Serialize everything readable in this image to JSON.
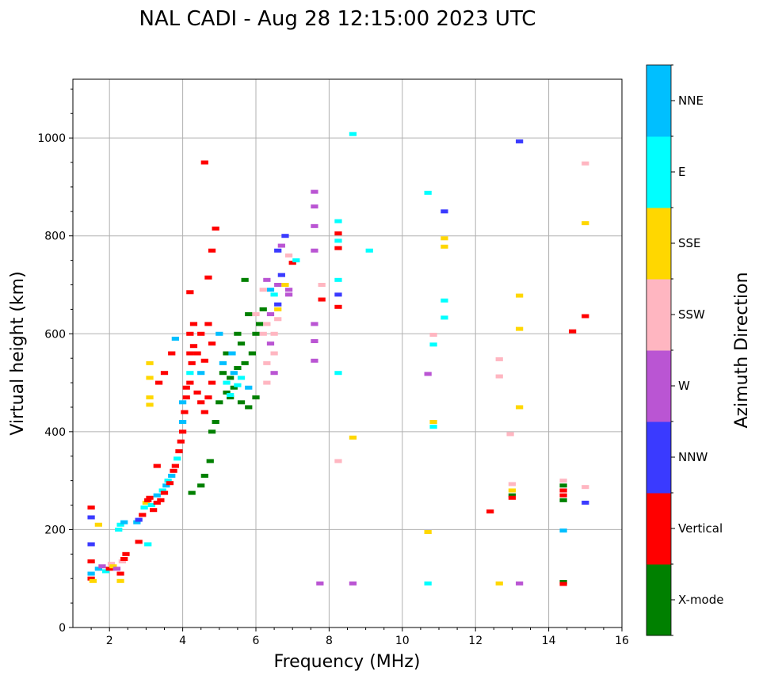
{
  "chart_data": {
    "type": "scatter",
    "title": "NAL CADI - Aug 28 12:15:00 2023 UTC",
    "xlabel": "Frequency (MHz)",
    "ylabel": "Virtual height (km)",
    "xlim": [
      1,
      16
    ],
    "ylim": [
      0,
      1120
    ],
    "xticks": [
      2,
      4,
      6,
      8,
      10,
      12,
      14,
      16
    ],
    "yticks": [
      0,
      200,
      400,
      600,
      800,
      1000
    ],
    "grid": true,
    "colorbar": {
      "label": "Azimuth Direction",
      "categories": [
        "X-mode",
        "Vertical",
        "NNW",
        "W",
        "SSW",
        "SSE",
        "E",
        "NNE"
      ],
      "colors": [
        "#008000",
        "#ff0000",
        "#3a3aff",
        "#ba55d3",
        "#ffb6c1",
        "#ffd700",
        "#00ffff",
        "#00bfff"
      ]
    },
    "points_format": "[frequency_MHz, virtual_height_km, category_index]",
    "points": [
      [
        1.5,
        100,
        1
      ],
      [
        1.5,
        110,
        7
      ],
      [
        1.55,
        95,
        5
      ],
      [
        1.7,
        120,
        7
      ],
      [
        1.8,
        125,
        3
      ],
      [
        1.9,
        115,
        6
      ],
      [
        2.0,
        120,
        1
      ],
      [
        2.05,
        130,
        4
      ],
      [
        2.1,
        125,
        5
      ],
      [
        2.2,
        120,
        3
      ],
      [
        2.3,
        110,
        1
      ],
      [
        2.3,
        95,
        5
      ],
      [
        2.35,
        135,
        4
      ],
      [
        2.4,
        140,
        1
      ],
      [
        2.45,
        150,
        1
      ],
      [
        1.5,
        135,
        1
      ],
      [
        1.5,
        170,
        2
      ],
      [
        1.5,
        245,
        1
      ],
      [
        1.5,
        225,
        2
      ],
      [
        1.7,
        210,
        5
      ],
      [
        2.3,
        210,
        6
      ],
      [
        2.25,
        200,
        6
      ],
      [
        2.4,
        215,
        7
      ],
      [
        2.8,
        175,
        1
      ],
      [
        3.05,
        170,
        6
      ],
      [
        2.75,
        215,
        7
      ],
      [
        2.8,
        220,
        2
      ],
      [
        2.9,
        230,
        1
      ],
      [
        2.95,
        245,
        6
      ],
      [
        3.0,
        255,
        5
      ],
      [
        3.05,
        260,
        1
      ],
      [
        3.1,
        265,
        1
      ],
      [
        3.15,
        250,
        6
      ],
      [
        3.2,
        240,
        1
      ],
      [
        3.3,
        255,
        1
      ],
      [
        3.3,
        270,
        7
      ],
      [
        3.4,
        260,
        1
      ],
      [
        3.45,
        280,
        6
      ],
      [
        3.5,
        275,
        1
      ],
      [
        3.55,
        290,
        7
      ],
      [
        3.6,
        300,
        6
      ],
      [
        3.65,
        295,
        1
      ],
      [
        3.7,
        310,
        7
      ],
      [
        3.75,
        320,
        1
      ],
      [
        3.8,
        330,
        1
      ],
      [
        3.85,
        345,
        6
      ],
      [
        3.9,
        360,
        1
      ],
      [
        3.95,
        380,
        1
      ],
      [
        4.0,
        400,
        1
      ],
      [
        4.0,
        420,
        7
      ],
      [
        4.05,
        440,
        1
      ],
      [
        4.0,
        460,
        7
      ],
      [
        4.1,
        470,
        1
      ],
      [
        4.1,
        490,
        1
      ],
      [
        4.2,
        500,
        1
      ],
      [
        4.2,
        520,
        6
      ],
      [
        4.25,
        540,
        1
      ],
      [
        4.2,
        560,
        1
      ],
      [
        4.3,
        575,
        1
      ],
      [
        4.2,
        600,
        1
      ],
      [
        4.3,
        620,
        1
      ],
      [
        4.2,
        685,
        1
      ],
      [
        4.6,
        950,
        1
      ],
      [
        4.9,
        815,
        1
      ],
      [
        4.8,
        770,
        1
      ],
      [
        4.7,
        715,
        1
      ],
      [
        4.4,
        480,
        1
      ],
      [
        4.5,
        460,
        1
      ],
      [
        4.6,
        440,
        1
      ],
      [
        4.7,
        470,
        1
      ],
      [
        4.8,
        500,
        1
      ],
      [
        4.5,
        520,
        7
      ],
      [
        4.6,
        545,
        1
      ],
      [
        4.4,
        560,
        1
      ],
      [
        4.8,
        580,
        1
      ],
      [
        4.5,
        600,
        1
      ],
      [
        4.7,
        620,
        1
      ],
      [
        3.1,
        540,
        5
      ],
      [
        3.1,
        510,
        5
      ],
      [
        3.1,
        470,
        5
      ],
      [
        3.1,
        455,
        5
      ],
      [
        3.35,
        500,
        1
      ],
      [
        3.5,
        520,
        1
      ],
      [
        3.7,
        560,
        1
      ],
      [
        3.8,
        590,
        7
      ],
      [
        3.3,
        330,
        1
      ],
      [
        4.25,
        275,
        0
      ],
      [
        4.5,
        290,
        0
      ],
      [
        4.6,
        310,
        0
      ],
      [
        4.75,
        340,
        0
      ],
      [
        4.8,
        400,
        0
      ],
      [
        4.9,
        420,
        0
      ],
      [
        5.0,
        460,
        0
      ],
      [
        5.2,
        480,
        0
      ],
      [
        5.3,
        510,
        0
      ],
      [
        5.5,
        530,
        0
      ],
      [
        5.4,
        490,
        0
      ],
      [
        5.6,
        460,
        0
      ],
      [
        5.8,
        450,
        0
      ],
      [
        6.0,
        470,
        0
      ],
      [
        5.7,
        540,
        0
      ],
      [
        5.9,
        560,
        0
      ],
      [
        6.0,
        600,
        0
      ],
      [
        6.1,
        620,
        0
      ],
      [
        5.8,
        640,
        0
      ],
      [
        5.7,
        710,
        0
      ],
      [
        5.5,
        600,
        0
      ],
      [
        5.2,
        560,
        0
      ],
      [
        5.1,
        520,
        0
      ],
      [
        5.6,
        580,
        0
      ],
      [
        6.2,
        650,
        0
      ],
      [
        5.3,
        470,
        0
      ],
      [
        5.2,
        500,
        6
      ],
      [
        5.4,
        520,
        7
      ],
      [
        5.5,
        495,
        6
      ],
      [
        5.1,
        540,
        7
      ],
      [
        5.6,
        510,
        6
      ],
      [
        5.35,
        560,
        7
      ],
      [
        5.0,
        600,
        7
      ],
      [
        5.8,
        490,
        7
      ],
      [
        5.3,
        475,
        6
      ],
      [
        6.3,
        710,
        3
      ],
      [
        6.4,
        690,
        7
      ],
      [
        6.5,
        680,
        6
      ],
      [
        6.6,
        700,
        3
      ],
      [
        6.7,
        720,
        2
      ],
      [
        6.8,
        700,
        5
      ],
      [
        6.9,
        690,
        3
      ],
      [
        6.6,
        660,
        2
      ],
      [
        6.4,
        640,
        3
      ],
      [
        6.3,
        620,
        4
      ],
      [
        6.5,
        600,
        4
      ],
      [
        6.4,
        580,
        3
      ],
      [
        6.5,
        560,
        4
      ],
      [
        6.3,
        540,
        4
      ],
      [
        6.5,
        520,
        3
      ],
      [
        6.3,
        500,
        4
      ],
      [
        6.2,
        600,
        4
      ],
      [
        6.6,
        650,
        5
      ],
      [
        6.7,
        780,
        3
      ],
      [
        6.8,
        800,
        2
      ],
      [
        6.6,
        770,
        2
      ],
      [
        7.0,
        745,
        1
      ],
      [
        7.1,
        750,
        6
      ],
      [
        6.9,
        760,
        4
      ],
      [
        6.2,
        690,
        4
      ],
      [
        6.0,
        640,
        4
      ],
      [
        6.9,
        680,
        3
      ],
      [
        6.6,
        630,
        4
      ],
      [
        7.6,
        890,
        3
      ],
      [
        7.6,
        860,
        3
      ],
      [
        7.6,
        820,
        3
      ],
      [
        7.6,
        770,
        3
      ],
      [
        7.6,
        620,
        3
      ],
      [
        7.6,
        585,
        3
      ],
      [
        7.6,
        545,
        3
      ],
      [
        7.75,
        90,
        3
      ],
      [
        7.8,
        670,
        1
      ],
      [
        7.8,
        700,
        4
      ],
      [
        8.25,
        830,
        6
      ],
      [
        8.25,
        805,
        1
      ],
      [
        8.25,
        775,
        1
      ],
      [
        8.25,
        790,
        6
      ],
      [
        8.25,
        710,
        6
      ],
      [
        8.25,
        680,
        2
      ],
      [
        8.25,
        655,
        1
      ],
      [
        8.25,
        520,
        6
      ],
      [
        8.25,
        340,
        4
      ],
      [
        8.65,
        1008,
        6
      ],
      [
        8.65,
        388,
        5
      ],
      [
        8.65,
        90,
        3
      ],
      [
        9.1,
        770,
        6
      ],
      [
        10.7,
        888,
        6
      ],
      [
        10.7,
        518,
        3
      ],
      [
        10.7,
        195,
        5
      ],
      [
        10.7,
        90,
        6
      ],
      [
        10.85,
        598,
        4
      ],
      [
        10.85,
        578,
        6
      ],
      [
        10.85,
        420,
        5
      ],
      [
        10.85,
        410,
        6
      ],
      [
        11.15,
        850,
        2
      ],
      [
        11.15,
        795,
        5
      ],
      [
        11.15,
        778,
        5
      ],
      [
        11.15,
        668,
        6
      ],
      [
        11.15,
        633,
        6
      ],
      [
        12.4,
        237,
        1
      ],
      [
        12.65,
        548,
        4
      ],
      [
        12.65,
        513,
        4
      ],
      [
        12.65,
        90,
        5
      ],
      [
        12.95,
        395,
        4
      ],
      [
        13.0,
        293,
        4
      ],
      [
        13.0,
        280,
        5
      ],
      [
        13.0,
        270,
        0
      ],
      [
        13.0,
        265,
        1
      ],
      [
        13.2,
        993,
        2
      ],
      [
        13.2,
        678,
        5
      ],
      [
        13.2,
        610,
        5
      ],
      [
        13.2,
        450,
        5
      ],
      [
        13.2,
        90,
        3
      ],
      [
        14.4,
        300,
        4
      ],
      [
        14.4,
        290,
        0
      ],
      [
        14.4,
        280,
        1
      ],
      [
        14.4,
        270,
        1
      ],
      [
        14.4,
        260,
        0
      ],
      [
        14.4,
        198,
        7
      ],
      [
        14.4,
        93,
        0
      ],
      [
        14.4,
        89,
        1
      ],
      [
        14.65,
        605,
        1
      ],
      [
        15.0,
        948,
        4
      ],
      [
        15.0,
        826,
        5
      ],
      [
        15.0,
        636,
        1
      ],
      [
        15.0,
        287,
        4
      ],
      [
        15.0,
        255,
        2
      ]
    ]
  }
}
